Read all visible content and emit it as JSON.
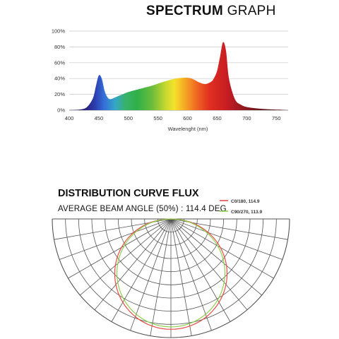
{
  "spectrum": {
    "title_bold": "SPECTRUM",
    "title_light": "GRAPH"
  },
  "flux": {
    "title": "DISTRIBUTION CURVE FLUX",
    "beam_angle": "AVERAGE BEAM ANGLE  (50%) : 114.4 DEG",
    "legend": [
      {
        "label": "C0/180, 114.9",
        "color": "#e84b4b"
      },
      {
        "label": "C90/270, 113.9",
        "color": "#8bd04a"
      }
    ]
  },
  "chart_data": [
    {
      "type": "area",
      "xlabel": "Wavelenght (nm)",
      "ylabel": "",
      "xlim": [
        400,
        770
      ],
      "ylim": [
        0,
        100
      ],
      "x_ticks": [
        "400",
        "450",
        "500",
        "550",
        "600",
        "650",
        "700",
        "750"
      ],
      "y_ticks": [
        "0%",
        "20%",
        "40%",
        "60%",
        "80%",
        "100%"
      ],
      "grid": true,
      "x": [
        400,
        420,
        430,
        440,
        445,
        450,
        455,
        460,
        465,
        470,
        480,
        490,
        500,
        520,
        540,
        560,
        580,
        600,
        610,
        620,
        630,
        640,
        645,
        650,
        655,
        660,
        665,
        670,
        680,
        690,
        700,
        720,
        740,
        760,
        770
      ],
      "values": [
        0,
        1,
        4,
        15,
        30,
        44,
        40,
        24,
        16,
        14,
        17,
        20,
        23,
        27,
        31,
        36,
        40,
        41,
        39,
        35,
        33,
        36,
        41,
        50,
        68,
        86,
        75,
        40,
        14,
        7,
        4,
        2,
        1,
        0.5,
        0
      ]
    },
    {
      "type": "polar",
      "series": [
        {
          "name": "C0/180, 114.9",
          "color": "#e84b4b"
        },
        {
          "name": "C90/270, 113.9",
          "color": "#8bd04a"
        }
      ]
    }
  ]
}
